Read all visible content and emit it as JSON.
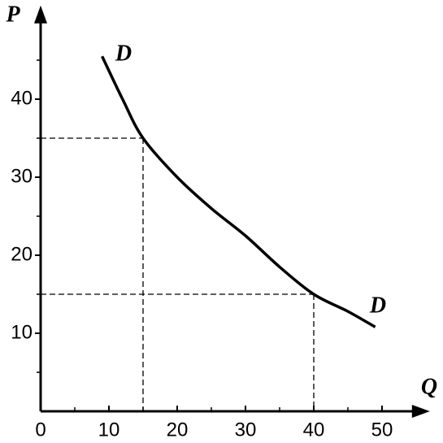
{
  "chart_data": {
    "type": "line",
    "x_label": "Q",
    "y_label": "P",
    "xlim": [
      0,
      57
    ],
    "ylim": [
      0,
      52
    ],
    "xticks": [
      0,
      10,
      20,
      30,
      40,
      50
    ],
    "yticks": [
      10,
      20,
      30,
      40
    ],
    "x_minor_ticks": [
      5,
      15,
      25,
      35,
      45
    ],
    "y_minor_ticks": [
      5,
      15,
      25,
      35,
      45
    ],
    "series": [
      {
        "name": "D",
        "color": "#000000",
        "x": [
          9,
          12,
          15,
          20,
          25,
          30,
          35,
          40,
          45,
          49
        ],
        "values": [
          45.5,
          40,
          35,
          30,
          26,
          22.5,
          18.5,
          15,
          12.8,
          10.8
        ]
      }
    ],
    "guides": [
      {
        "x": 15,
        "y": 35
      },
      {
        "x": 40,
        "y": 15
      }
    ]
  }
}
